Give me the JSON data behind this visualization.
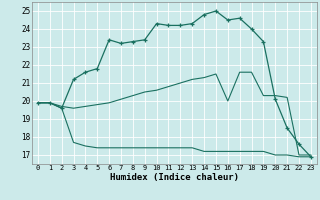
{
  "xlabel": "Humidex (Indice chaleur)",
  "bg_color": "#cceaea",
  "line_color": "#1a7060",
  "grid_color": "#ffffff",
  "xlim": [
    -0.5,
    23.5
  ],
  "ylim": [
    16.5,
    25.5
  ],
  "xticks": [
    0,
    1,
    2,
    3,
    4,
    5,
    6,
    7,
    8,
    9,
    10,
    11,
    12,
    13,
    14,
    15,
    16,
    17,
    18,
    19,
    20,
    21,
    22,
    23
  ],
  "yticks": [
    17,
    18,
    19,
    20,
    21,
    22,
    23,
    24,
    25
  ],
  "curve1_x": [
    0,
    1,
    2,
    3,
    4,
    5,
    6,
    7,
    8,
    9,
    10,
    11,
    12,
    13,
    14,
    15,
    16,
    17,
    18,
    19,
    20,
    21,
    22,
    23
  ],
  "curve1_y": [
    19.9,
    19.9,
    19.6,
    21.2,
    21.6,
    21.8,
    23.4,
    23.2,
    23.3,
    23.4,
    24.3,
    24.2,
    24.2,
    24.3,
    24.8,
    25.0,
    24.5,
    24.6,
    24.0,
    23.3,
    20.1,
    18.5,
    17.6,
    16.9
  ],
  "curve2_x": [
    0,
    1,
    2,
    3,
    4,
    5,
    6,
    7,
    8,
    9,
    10,
    11,
    12,
    13,
    14,
    15,
    16,
    17,
    18,
    19,
    20,
    21,
    22,
    23
  ],
  "curve2_y": [
    19.9,
    19.9,
    19.7,
    19.6,
    19.7,
    19.8,
    19.9,
    20.1,
    20.3,
    20.5,
    20.6,
    20.8,
    21.0,
    21.2,
    21.3,
    21.5,
    20.0,
    21.6,
    21.6,
    20.3,
    20.3,
    20.2,
    17.0,
    17.0
  ],
  "curve3_x": [
    0,
    1,
    2,
    3,
    4,
    5,
    6,
    7,
    8,
    9,
    10,
    11,
    12,
    13,
    14,
    15,
    16,
    17,
    18,
    19,
    20,
    21,
    22,
    23
  ],
  "curve3_y": [
    19.9,
    19.9,
    19.6,
    17.7,
    17.5,
    17.4,
    17.4,
    17.4,
    17.4,
    17.4,
    17.4,
    17.4,
    17.4,
    17.4,
    17.2,
    17.2,
    17.2,
    17.2,
    17.2,
    17.2,
    17.0,
    17.0,
    16.9,
    16.9
  ]
}
